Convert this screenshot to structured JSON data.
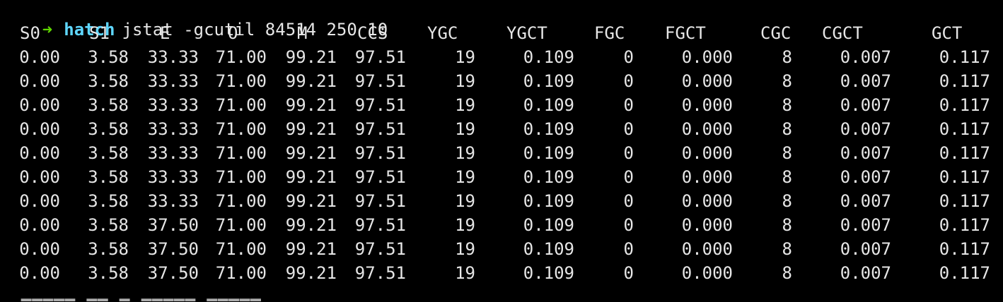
{
  "prompt": {
    "arrow": "➜",
    "user": "hatch",
    "command": "jstat -gcutil 84514 250 10"
  },
  "table": {
    "headers": [
      "S0",
      "S1",
      "E",
      "O",
      "M",
      "CCS",
      "YGC",
      "YGCT",
      "FGC",
      "FGCT",
      "CGC",
      "CGCT",
      "GCT"
    ],
    "rows": [
      [
        "0.00",
        "3.58",
        "33.33",
        "71.00",
        "99.21",
        "97.51",
        "19",
        "0.109",
        "0",
        "0.000",
        "8",
        "0.007",
        "0.117"
      ],
      [
        "0.00",
        "3.58",
        "33.33",
        "71.00",
        "99.21",
        "97.51",
        "19",
        "0.109",
        "0",
        "0.000",
        "8",
        "0.007",
        "0.117"
      ],
      [
        "0.00",
        "3.58",
        "33.33",
        "71.00",
        "99.21",
        "97.51",
        "19",
        "0.109",
        "0",
        "0.000",
        "8",
        "0.007",
        "0.117"
      ],
      [
        "0.00",
        "3.58",
        "33.33",
        "71.00",
        "99.21",
        "97.51",
        "19",
        "0.109",
        "0",
        "0.000",
        "8",
        "0.007",
        "0.117"
      ],
      [
        "0.00",
        "3.58",
        "33.33",
        "71.00",
        "99.21",
        "97.51",
        "19",
        "0.109",
        "0",
        "0.000",
        "8",
        "0.007",
        "0.117"
      ],
      [
        "0.00",
        "3.58",
        "33.33",
        "71.00",
        "99.21",
        "97.51",
        "19",
        "0.109",
        "0",
        "0.000",
        "8",
        "0.007",
        "0.117"
      ],
      [
        "0.00",
        "3.58",
        "33.33",
        "71.00",
        "99.21",
        "97.51",
        "19",
        "0.109",
        "0",
        "0.000",
        "8",
        "0.007",
        "0.117"
      ],
      [
        "0.00",
        "3.58",
        "37.50",
        "71.00",
        "99.21",
        "97.51",
        "19",
        "0.109",
        "0",
        "0.000",
        "8",
        "0.007",
        "0.117"
      ],
      [
        "0.00",
        "3.58",
        "37.50",
        "71.00",
        "99.21",
        "97.51",
        "19",
        "0.109",
        "0",
        "0.000",
        "8",
        "0.007",
        "0.117"
      ],
      [
        "0.00",
        "3.58",
        "37.50",
        "71.00",
        "99.21",
        "97.51",
        "19",
        "0.109",
        "0",
        "0.000",
        "8",
        "0.007",
        "0.117"
      ]
    ]
  },
  "colors": {
    "background": "#000000",
    "text": "#e6e6e6",
    "arrow": "#5fd700",
    "user": "#5fd7ff"
  }
}
